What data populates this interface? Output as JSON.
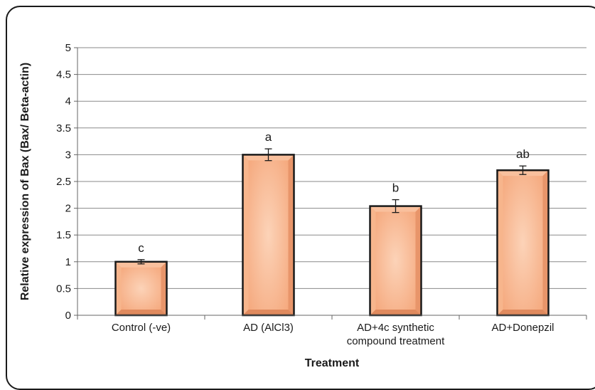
{
  "chart_data": {
    "type": "bar",
    "categories": [
      [
        "Control (-ve)"
      ],
      [
        "AD (AlCl3)"
      ],
      [
        "AD+4c synthetic",
        "compound treatment"
      ],
      [
        "AD+Donepzil"
      ]
    ],
    "values": [
      1.0,
      3.0,
      2.04,
      2.71
    ],
    "error": [
      0.04,
      0.11,
      0.12,
      0.08
    ],
    "significance_letters": [
      "c",
      "a",
      "b",
      "ab"
    ],
    "xlabel": "Treatment",
    "ylabel": "Relative expression of Bax (Bax/ Beta-actin)",
    "ylim": [
      0,
      5
    ],
    "yticks": [
      "0",
      "0.5",
      "1",
      "1.5",
      "2",
      "2.5",
      "3",
      "3.5",
      "4",
      "4.5",
      "5"
    ],
    "grid": true,
    "legend": "none",
    "colors": {
      "bar_fill": "#f5a97e",
      "bar_fill_light": "#fcd3b8",
      "bar_edge": "#1a1a1a",
      "grid": "#8a8a8a"
    }
  }
}
